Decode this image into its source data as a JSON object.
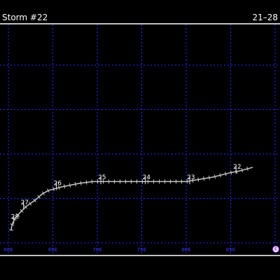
{
  "header": {
    "title": "Storm #22",
    "dates": "21–28"
  },
  "map": {
    "lon_labels": [
      "60E",
      "65E",
      "70E",
      "75E",
      "80E",
      "85E"
    ],
    "colors": {
      "background": "#000000",
      "grid": "#2a2aff",
      "frame": "#ffffff",
      "track": "#c8c8c8",
      "day_label": "#ffffff",
      "axis_label": "#3a3aff",
      "logo": "#8a2be2"
    },
    "logo_icon": "copyright-logo-icon"
  },
  "track": {
    "lon_lat": [
      [
        87.5,
        18.5
      ],
      [
        86.0,
        18.1
      ],
      [
        85.0,
        17.9
      ],
      [
        83.0,
        17.4
      ],
      [
        80.0,
        16.9
      ],
      [
        78.0,
        16.9
      ],
      [
        75.0,
        16.9
      ],
      [
        72.0,
        16.9
      ],
      [
        69.5,
        16.9
      ],
      [
        68.0,
        16.7
      ],
      [
        66.0,
        16.3
      ],
      [
        64.5,
        15.9
      ],
      [
        63.8,
        15.5
      ],
      [
        63.0,
        14.8
      ],
      [
        62.0,
        14.1
      ],
      [
        61.3,
        13.4
      ],
      [
        60.7,
        12.7
      ],
      [
        60.4,
        12.0
      ],
      [
        60.3,
        11.4
      ]
    ],
    "day_labels": [
      {
        "text": "22",
        "lon": 85.6,
        "lat": 18.35
      },
      {
        "text": "23",
        "lon": 80.4,
        "lat": 17.15
      },
      {
        "text": "24",
        "lon": 75.4,
        "lat": 17.15
      },
      {
        "text": "25",
        "lon": 70.4,
        "lat": 17.15
      },
      {
        "text": "26",
        "lon": 65.4,
        "lat": 16.5
      },
      {
        "text": "27",
        "lon": 61.7,
        "lat": 14.35
      },
      {
        "text": "28",
        "lon": 60.6,
        "lat": 12.7
      }
    ]
  }
}
